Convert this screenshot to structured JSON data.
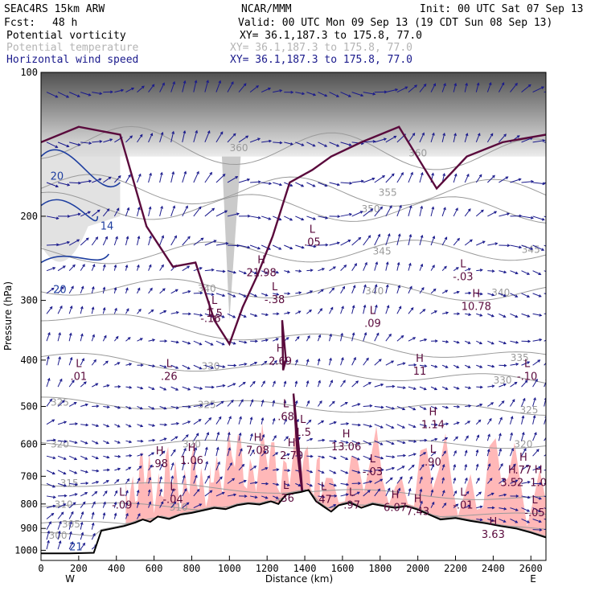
{
  "header": {
    "model": "SEAC4RS 15km ARW",
    "org": "NCAR/MMM",
    "init": "Init: 00 UTC Sat 07 Sep 13",
    "fcst_label": "Fcst:",
    "fcst_value": "48 h",
    "valid": "Valid: 00 UTC Mon 09 Sep 13 (19 CDT Sun 08 Sep 13)",
    "fields": [
      {
        "name": "Potential vorticity",
        "xy": "XY=  36.1,187.3 to 175.8, 77.0",
        "color": "#000000"
      },
      {
        "name": "Potential temperature",
        "xy": "XY=  36.1,187.3 to 175.8, 77.0",
        "color": "#b4b4b4"
      },
      {
        "name": "Horizontal wind speed",
        "xy": "XY=  36.1,187.3 to 175.8, 77.0",
        "color": "#1a1a8c"
      }
    ]
  },
  "colors": {
    "wind": "#1a1a8c",
    "theta": "#9a9a9a",
    "pv": "#5a0a3c",
    "pink": "#ffb8b8",
    "speed": "#1f3fa0",
    "terrain": "#000000"
  },
  "chart_data": {
    "type": "cross-section",
    "xlabel": "Distance (km)",
    "ylabel": "Pressure (hPa)",
    "xlim": [
      0,
      2680
    ],
    "ylim": [
      1050,
      100
    ],
    "y_log": true,
    "x_ticks": [
      0,
      200,
      400,
      600,
      800,
      1000,
      1200,
      1400,
      1600,
      1800,
      2000,
      2200,
      2400,
      2600
    ],
    "y_ticks": [
      100,
      200,
      300,
      400,
      500,
      600,
      700,
      800,
      900,
      1000
    ],
    "endpoints": {
      "left": "W",
      "right": "E"
    },
    "terrain": [
      {
        "x": 0,
        "p": 1015
      },
      {
        "x": 150,
        "p": 1015
      },
      {
        "x": 280,
        "p": 1012
      },
      {
        "x": 320,
        "p": 910
      },
      {
        "x": 380,
        "p": 900
      },
      {
        "x": 440,
        "p": 890
      },
      {
        "x": 500,
        "p": 875
      },
      {
        "x": 540,
        "p": 862
      },
      {
        "x": 580,
        "p": 872
      },
      {
        "x": 620,
        "p": 850
      },
      {
        "x": 680,
        "p": 860
      },
      {
        "x": 740,
        "p": 842
      },
      {
        "x": 800,
        "p": 835
      },
      {
        "x": 860,
        "p": 825
      },
      {
        "x": 920,
        "p": 815
      },
      {
        "x": 980,
        "p": 820
      },
      {
        "x": 1040,
        "p": 805
      },
      {
        "x": 1100,
        "p": 798
      },
      {
        "x": 1160,
        "p": 802
      },
      {
        "x": 1220,
        "p": 790
      },
      {
        "x": 1260,
        "p": 800
      },
      {
        "x": 1300,
        "p": 765
      },
      {
        "x": 1340,
        "p": 760
      },
      {
        "x": 1380,
        "p": 755
      },
      {
        "x": 1420,
        "p": 748
      },
      {
        "x": 1460,
        "p": 790
      },
      {
        "x": 1500,
        "p": 810
      },
      {
        "x": 1540,
        "p": 830
      },
      {
        "x": 1580,
        "p": 805
      },
      {
        "x": 1640,
        "p": 795
      },
      {
        "x": 1700,
        "p": 815
      },
      {
        "x": 1760,
        "p": 800
      },
      {
        "x": 1820,
        "p": 808
      },
      {
        "x": 1880,
        "p": 815
      },
      {
        "x": 1940,
        "p": 808
      },
      {
        "x": 2000,
        "p": 822
      },
      {
        "x": 2060,
        "p": 842
      },
      {
        "x": 2120,
        "p": 862
      },
      {
        "x": 2200,
        "p": 856
      },
      {
        "x": 2280,
        "p": 868
      },
      {
        "x": 2360,
        "p": 878
      },
      {
        "x": 2440,
        "p": 890
      },
      {
        "x": 2520,
        "p": 900
      },
      {
        "x": 2600,
        "p": 918
      },
      {
        "x": 2680,
        "p": 940
      }
    ],
    "moist_regions": [
      {
        "x0": 450,
        "x1": 900,
        "p_top": 640,
        "p_bottom": 860
      },
      {
        "x0": 900,
        "x1": 1480,
        "p_top": 580,
        "p_bottom": 800
      },
      {
        "x0": 1480,
        "x1": 2680,
        "p_top": 610,
        "p_bottom": 920
      }
    ],
    "theta_isentropes": [
      {
        "value": 300,
        "p_left": 930,
        "p_right": 960,
        "labels": [
          {
            "x": 90,
            "text": "300"
          }
        ]
      },
      {
        "value": 305,
        "p_left": 880,
        "p_right": 900,
        "labels": [
          {
            "x": 160,
            "text": "305"
          }
        ]
      },
      {
        "value": 310,
        "p_left": 800,
        "p_right": 850,
        "labels": [
          {
            "x": 120,
            "text": "310"
          },
          {
            "x": 730,
            "text": "310"
          }
        ]
      },
      {
        "value": 315,
        "p_left": 720,
        "p_right": 780,
        "labels": [
          {
            "x": 150,
            "text": "315"
          }
        ]
      },
      {
        "value": 320,
        "p_left": 600,
        "p_right": 600,
        "labels": [
          {
            "x": 100,
            "text": "320"
          },
          {
            "x": 800,
            "text": "320"
          },
          {
            "x": 2560,
            "text": "320"
          }
        ]
      },
      {
        "value": 325,
        "p_left": 490,
        "p_right": 510,
        "labels": [
          {
            "x": 100,
            "text": "325"
          },
          {
            "x": 880,
            "text": "325"
          },
          {
            "x": 2590,
            "text": "325"
          }
        ]
      },
      {
        "value": 330,
        "p_left": 395,
        "p_right": 445,
        "labels": [
          {
            "x": 900,
            "text": "330"
          },
          {
            "x": 2450,
            "text": "330"
          }
        ]
      },
      {
        "value": 335,
        "p_left": 320,
        "p_right": 400,
        "labels": [
          {
            "x": 2540,
            "text": "335"
          }
        ]
      },
      {
        "value": 340,
        "p_left": 280,
        "p_right": 290,
        "labels": [
          {
            "x": 880,
            "text": "340"
          },
          {
            "x": 1770,
            "text": "340"
          },
          {
            "x": 2440,
            "text": "340"
          }
        ]
      },
      {
        "value": 345,
        "p_left": 240,
        "p_right": 235,
        "labels": [
          {
            "x": 1810,
            "text": "345"
          },
          {
            "x": 2600,
            "text": "345"
          }
        ]
      },
      {
        "value": 350,
        "p_left": 190,
        "p_right": 195,
        "labels": [
          {
            "x": 1750,
            "text": "350"
          }
        ]
      },
      {
        "value": 355,
        "p_left": 175,
        "p_right": 180,
        "labels": [
          {
            "x": 1840,
            "text": "355"
          }
        ]
      },
      {
        "value": 360,
        "p_left": 140,
        "p_right": 150,
        "labels": [
          {
            "x": 1050,
            "text": "360"
          },
          {
            "x": 2000,
            "text": "360"
          }
        ]
      }
    ],
    "speed_contours": [
      {
        "value": 20,
        "labels": [
          {
            "x": 85,
            "p": 165,
            "text": "20"
          },
          {
            "x": 100,
            "p": 285,
            "text": "20"
          }
        ]
      },
      {
        "value": 14,
        "labels": [
          {
            "x": 350,
            "p": 210,
            "text": "14"
          }
        ]
      },
      {
        "value": 21,
        "labels": [
          {
            "x": 185,
            "p": 985,
            "text": "21"
          }
        ]
      }
    ],
    "annotations": [
      {
        "type": "H",
        "x": 630,
        "p": 640,
        "value": ".98"
      },
      {
        "type": "H",
        "x": 800,
        "p": 630,
        "value": "1.06"
      },
      {
        "type": "L",
        "x": 430,
        "p": 780,
        "value": "-.09"
      },
      {
        "type": "L",
        "x": 700,
        "p": 760,
        "value": "-.04"
      },
      {
        "type": "L",
        "x": 920,
        "p": 310,
        "value": "1.5"
      },
      {
        "type": "L",
        "x": 900,
        "p": 318,
        "value": "-.16"
      },
      {
        "type": "H",
        "x": 1170,
        "p": 255,
        "value": "21.98"
      },
      {
        "type": "L",
        "x": 1240,
        "p": 290,
        "value": "-.38"
      },
      {
        "type": "L",
        "x": 1440,
        "p": 220,
        "value": ".05"
      },
      {
        "type": "H",
        "x": 1270,
        "p": 390,
        "value": "2.69"
      },
      {
        "type": "L",
        "x": 1300,
        "p": 510,
        "value": ".68"
      },
      {
        "type": "L",
        "x": 1390,
        "p": 550,
        "value": "1.5"
      },
      {
        "type": "H",
        "x": 1150,
        "p": 600,
        "value": "7.08"
      },
      {
        "type": "H",
        "x": 1330,
        "p": 615,
        "value": "2.70"
      },
      {
        "type": "H",
        "x": 1620,
        "p": 590,
        "value": "13.06"
      },
      {
        "type": "L",
        "x": 1300,
        "p": 755,
        "value": ".36"
      },
      {
        "type": "L",
        "x": 1500,
        "p": 760,
        "value": ".47"
      },
      {
        "type": "L",
        "x": 1650,
        "p": 780,
        "value": ".97"
      },
      {
        "type": "H",
        "x": 1880,
        "p": 790,
        "value": "6.07"
      },
      {
        "type": "L",
        "x": 1760,
        "p": 665,
        "value": "-.03"
      },
      {
        "type": "L",
        "x": 2080,
        "p": 635,
        "value": ".90"
      },
      {
        "type": "H",
        "x": 2080,
        "p": 530,
        "value": "1.14"
      },
      {
        "type": "H",
        "x": 2000,
        "p": 805,
        "value": "7.43"
      },
      {
        "type": "L",
        "x": 2240,
        "p": 260,
        "value": "-.03"
      },
      {
        "type": "H",
        "x": 2310,
        "p": 300,
        "value": "10.78"
      },
      {
        "type": "H",
        "x": 2010,
        "p": 410,
        "value": "11"
      },
      {
        "type": "L",
        "x": 1760,
        "p": 325,
        "value": ".09"
      },
      {
        "type": "L",
        "x": 2580,
        "p": 420,
        "value": "-.10"
      },
      {
        "type": "H",
        "x": 2500,
        "p": 700,
        "value": "3.52"
      },
      {
        "type": "H",
        "x": 2560,
        "p": 660,
        "value": ".77"
      },
      {
        "type": "H",
        "x": 2640,
        "p": 700,
        "value": "1.0"
      },
      {
        "type": "L",
        "x": 2240,
        "p": 780,
        "value": "-.01"
      },
      {
        "type": "L",
        "x": 2620,
        "p": 810,
        "value": "-.05"
      },
      {
        "type": "H",
        "x": 2400,
        "p": 900,
        "value": "3.63"
      },
      {
        "type": "L",
        "x": 200,
        "p": 420,
        "value": ".01"
      },
      {
        "type": "L",
        "x": 680,
        "p": 420,
        "value": ".26"
      }
    ]
  }
}
